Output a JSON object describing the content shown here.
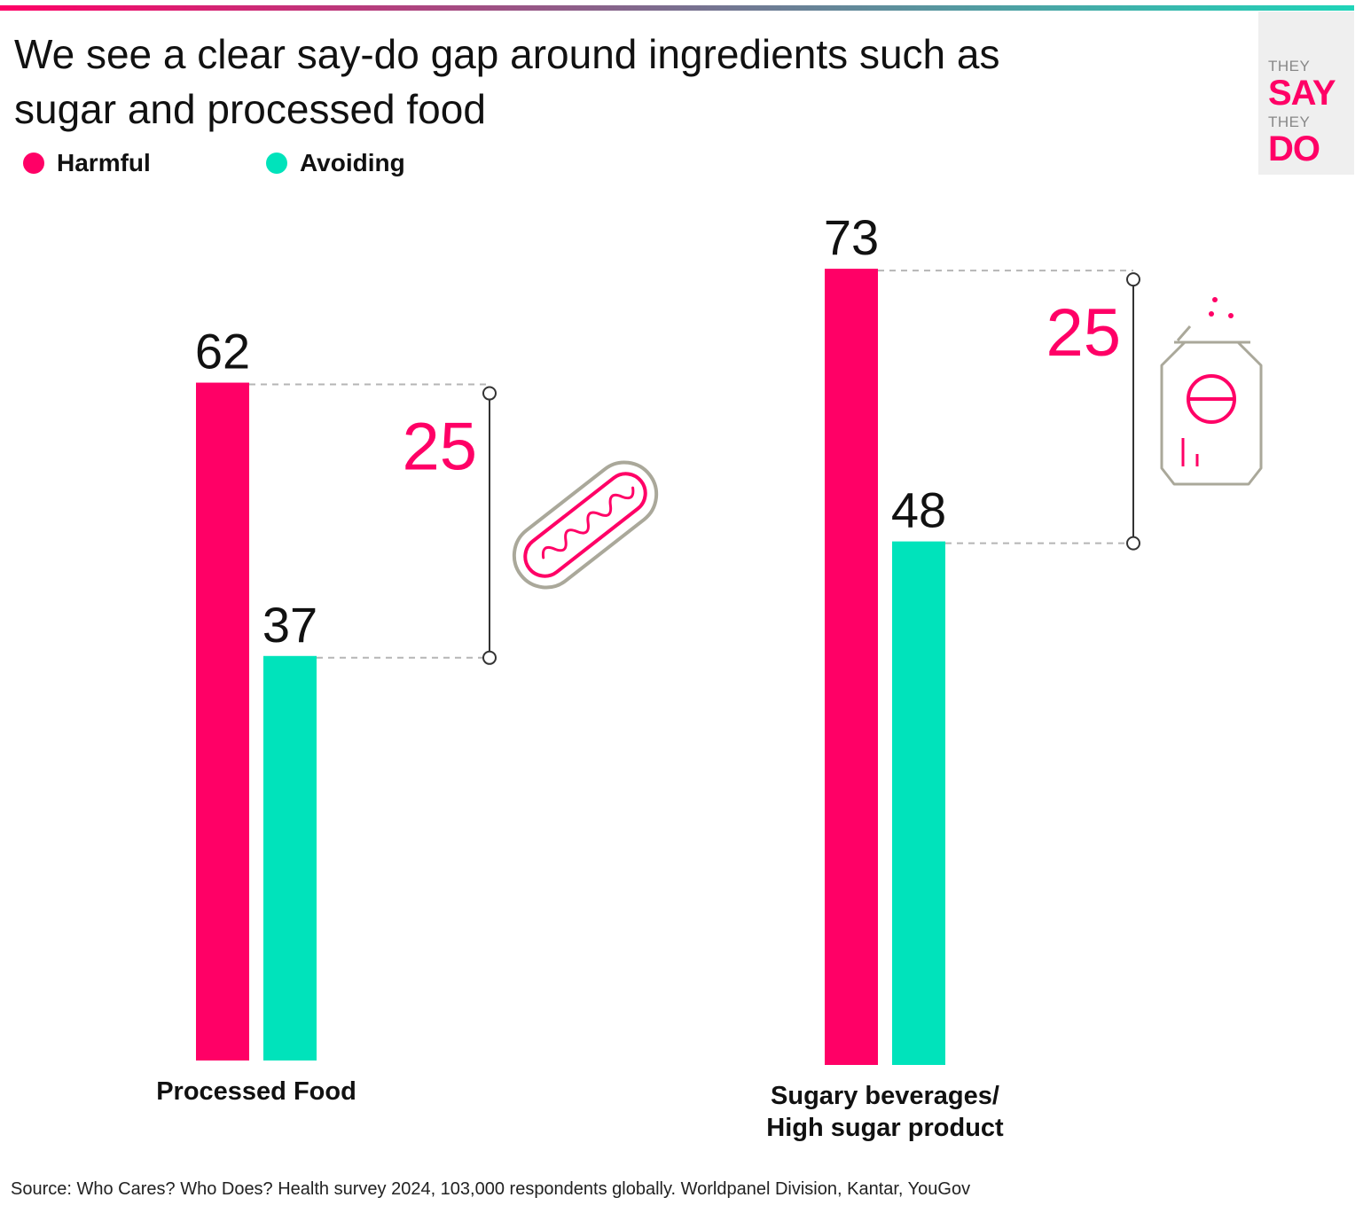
{
  "header": {
    "title": "We see a clear say-do gap around ingredients such as sugar and processed food"
  },
  "legend": [
    {
      "label": "Harmful",
      "color": "#ff0066"
    },
    {
      "label": "Avoiding",
      "color": "#00e3bb"
    }
  ],
  "logo": {
    "line1": "THEY",
    "line2": "SAY",
    "line3": "THEY",
    "line4": "DO"
  },
  "chart_data": {
    "type": "bar",
    "title": "We see a clear say-do gap around ingredients such as sugar and processed food",
    "xlabel": "",
    "ylabel": "",
    "categories": [
      "Processed Food",
      "Sugary beverages/ High sugar product"
    ],
    "category_lines": [
      [
        "Processed Food"
      ],
      [
        "Sugary beverages/",
        "High sugar product"
      ]
    ],
    "series": [
      {
        "name": "Harmful",
        "values": [
          62,
          73
        ],
        "color": "#ff0066"
      },
      {
        "name": "Avoiding",
        "values": [
          37,
          48
        ],
        "color": "#00e3bb"
      }
    ],
    "gaps": [
      25,
      25
    ],
    "gap_color": "#ff0066",
    "icons": [
      "hot-dog-icon",
      "soda-can-icon"
    ],
    "ylim": [
      0,
      100
    ],
    "grid": false,
    "legend_position": "top-left"
  },
  "footer": {
    "source": "Source: Who Cares? Who Does? Health survey 2024, 103,000 respondents globally. Worldpanel Division, Kantar, YouGov"
  }
}
